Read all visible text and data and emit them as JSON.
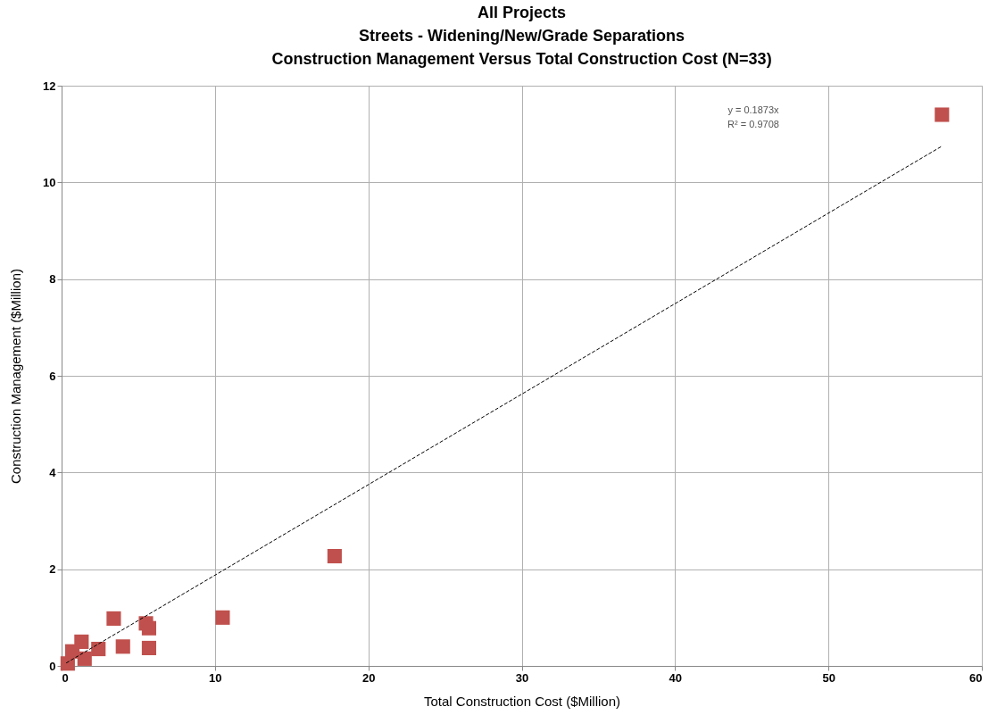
{
  "chart_data": {
    "type": "scatter",
    "title": [
      "All Projects",
      "Streets - Widening/New/Grade Separations",
      "Construction Management   Versus Total Construction Cost  (N=33)"
    ],
    "xlabel": "Total Construction Cost ($Million)",
    "ylabel": "Construction Management  ($Million)",
    "annotations": [
      "y = 0.1873x",
      "R² = 0.9708"
    ],
    "xlim": [
      0,
      60
    ],
    "xticks": [
      0,
      10,
      20,
      30,
      40,
      50,
      60
    ],
    "ylim": [
      0,
      12
    ],
    "yticks": [
      0,
      2,
      4,
      6,
      8,
      10,
      12
    ],
    "grid": true,
    "series": [
      {
        "marker": "square",
        "color": "#c0504d",
        "x": [
          57.4,
          17.8,
          10.5,
          3.4,
          5.5,
          5.7,
          5.7,
          4.0,
          2.4,
          1.3,
          1.5,
          0.7,
          0.4
        ],
        "values": [
          11.4,
          2.27,
          1.0,
          0.98,
          0.88,
          0.78,
          0.37,
          0.4,
          0.35,
          0.5,
          0.15,
          0.3,
          0.05
        ]
      },
      {
        "type": "line",
        "color": "#000000",
        "line_style": "dashed",
        "x": [
          0.3,
          57.4
        ],
        "values": [
          0.06,
          10.75
        ]
      }
    ]
  }
}
